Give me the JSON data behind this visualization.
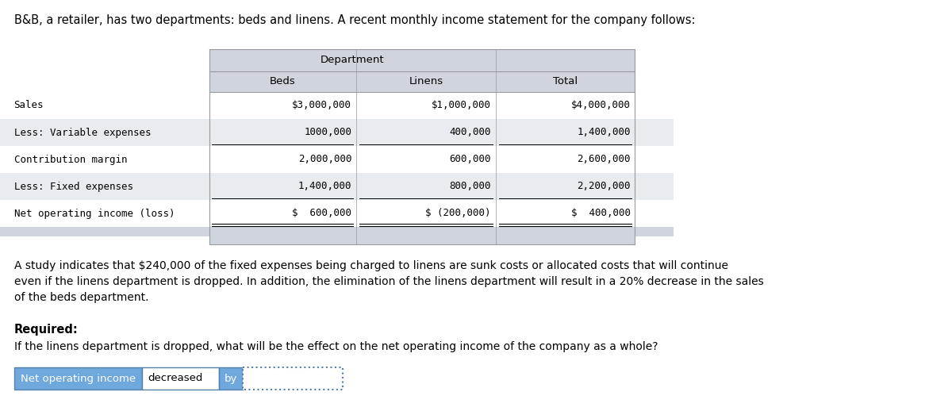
{
  "title_text": "B&B, a retailer, has two departments: beds and linens. A recent monthly income statement for the company follows:",
  "dept_header": "Department",
  "col_headers": [
    "Beds",
    "Linens",
    "Total"
  ],
  "row_labels": [
    "Sales",
    "Less: Variable expenses",
    "Contribution margin",
    "Less: Fixed expenses",
    "Net operating income (loss)"
  ],
  "beds_values": [
    "$3,000,000",
    "1000,000",
    "2,000,000",
    "1,400,000",
    "$  600,000"
  ],
  "linens_values": [
    "$1,000,000",
    "400,000",
    "600,000",
    "800,000",
    "$ (200,000)"
  ],
  "total_values": [
    "$4,000,000",
    "1,400,000",
    "2,600,000",
    "2,200,000",
    "$  400,000"
  ],
  "study_text": "A study indicates that $240,000 of the fixed expenses being charged to linens are sunk costs or allocated costs that will continue\neven if the linens department is dropped. In addition, the elimination of the linens department will result in a 20% decrease in the sales\nof the beds department.",
  "required_label": "Required:",
  "required_text": "If the linens department is dropped, what will be the effect on the net operating income of the company as a whole?",
  "answer_label1": "Net operating income",
  "answer_label2": "decreased",
  "answer_label3": "by",
  "bg_color": "#ffffff",
  "table_header_bg": "#d0d4dc",
  "table_row_bg_odd": "#e8ebf0",
  "table_row_bg_even": "#ffffff",
  "table_border_color": "#999999",
  "answer_box_bg": "#6fa8dc",
  "answer_input_bg": "#ffffff",
  "font_color": "#000000"
}
